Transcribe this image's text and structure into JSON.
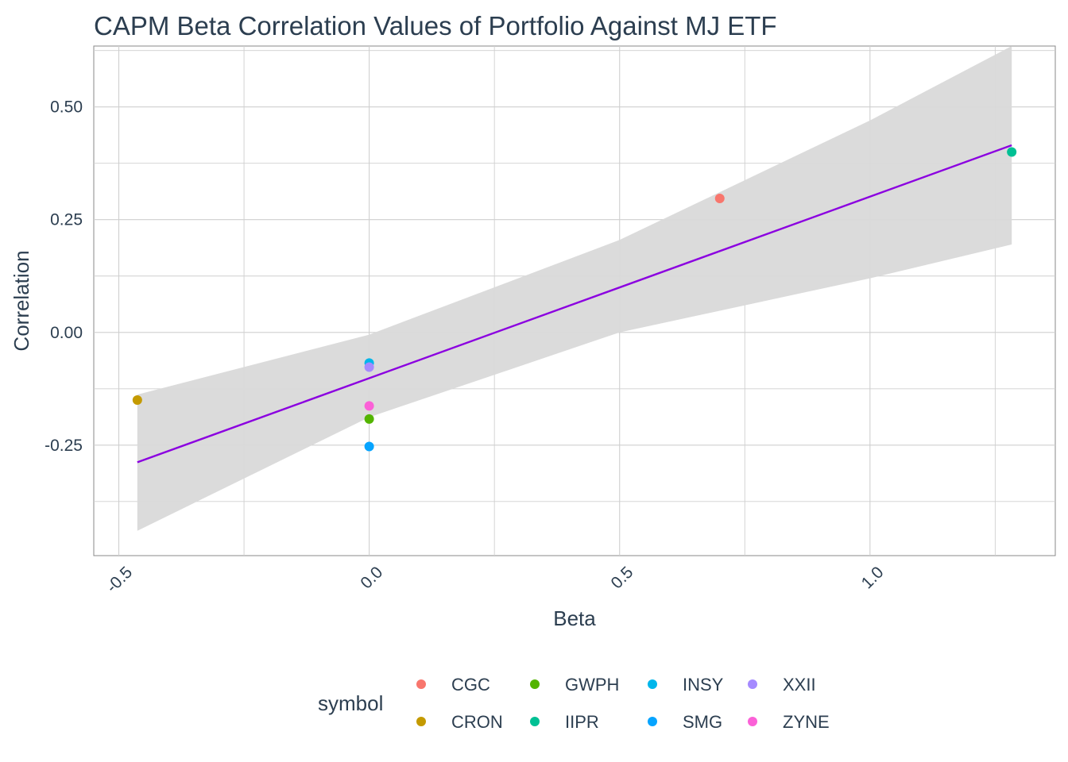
{
  "chart_data": {
    "type": "scatter",
    "title": "CAPM Beta Correlation Values of Portfolio Against MJ ETF",
    "xlabel": "Beta",
    "ylabel": "Correlation",
    "xlim": [
      -0.55,
      1.37
    ],
    "ylim": [
      -0.495,
      0.635
    ],
    "x_ticks": [
      -0.5,
      0.0,
      0.5,
      1.0
    ],
    "x_tick_labels": [
      "-0.5",
      "0.0",
      "0.5",
      "1.0"
    ],
    "y_ticks": [
      -0.25,
      0.0,
      0.25,
      0.5
    ],
    "y_tick_labels": [
      "-0.25",
      "0.00",
      "0.25",
      "0.50"
    ],
    "grid": true,
    "legend": {
      "title": "symbol",
      "position": "bottom"
    },
    "series": [
      {
        "name": "CGC",
        "color": "#F8766D",
        "x": [
          0.7
        ],
        "y": [
          0.297
        ]
      },
      {
        "name": "CRON",
        "color": "#C49A00",
        "x": [
          -0.463
        ],
        "y": [
          -0.15
        ]
      },
      {
        "name": "GWPH",
        "color": "#53B400",
        "x": [
          0.0
        ],
        "y": [
          -0.192
        ]
      },
      {
        "name": "IIPR",
        "color": "#00C094",
        "x": [
          1.283
        ],
        "y": [
          0.4
        ]
      },
      {
        "name": "INSY",
        "color": "#00B6EB",
        "x": [
          0.0
        ],
        "y": [
          -0.068
        ]
      },
      {
        "name": "SMG",
        "color": "#06A4FF",
        "x": [
          0.0
        ],
        "y": [
          -0.253
        ]
      },
      {
        "name": "XXII",
        "color": "#A58AFF",
        "x": [
          0.0
        ],
        "y": [
          -0.077
        ]
      },
      {
        "name": "ZYNE",
        "color": "#FB61D7",
        "x": [
          0.0
        ],
        "y": [
          -0.163
        ]
      }
    ],
    "trend_line": {
      "method": "linear fit",
      "color": "#8B00E0",
      "x": [
        -0.463,
        1.283
      ],
      "y": [
        -0.288,
        0.415
      ],
      "confidence_band": {
        "color": "#d9d9d9",
        "x": [
          -0.463,
          0.0,
          0.5,
          1.0,
          1.283
        ],
        "lower": [
          -0.44,
          -0.188,
          0.0,
          0.12,
          0.195
        ],
        "upper": [
          -0.138,
          -0.005,
          0.205,
          0.47,
          0.635
        ]
      }
    }
  }
}
